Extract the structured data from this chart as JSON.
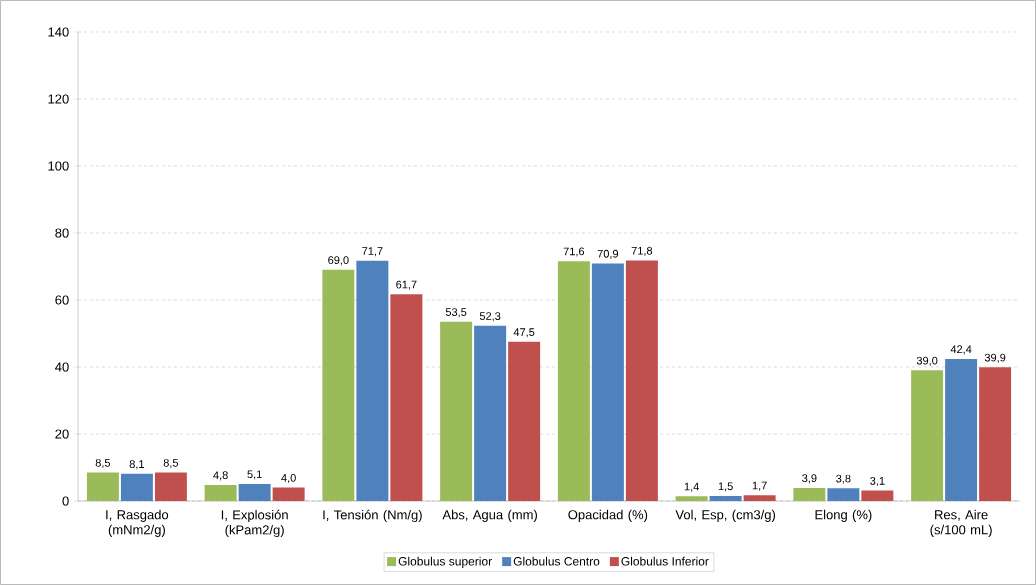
{
  "chart_data": {
    "type": "bar",
    "categories": [
      "I, Rasgado (mNm2/g)",
      "I, Explosión (kPam2/g)",
      "I, Tensión (Nm/g)",
      "Abs, Agua (mm)",
      "Opacidad (%)",
      "Vol, Esp, (cm3/g)",
      "Elong (%)",
      "Res, Aire (s/100 mL)"
    ],
    "series": [
      {
        "name": "Globulus superior",
        "color": "#9bbb59",
        "values": [
          8.5,
          4.8,
          69.0,
          53.5,
          71.6,
          1.4,
          3.9,
          39.0
        ],
        "value_labels": [
          "8,5",
          "4,8",
          "69,0",
          "53,5",
          "71,6",
          "1,4",
          "3,9",
          "39,0"
        ]
      },
      {
        "name": "Globulus Centro",
        "color": "#4f81bd",
        "values": [
          8.1,
          5.1,
          71.7,
          52.3,
          70.9,
          1.5,
          3.8,
          42.4
        ],
        "value_labels": [
          "8,1",
          "5,1",
          "71,7",
          "52,3",
          "70,9",
          "1,5",
          "3,8",
          "42,4"
        ]
      },
      {
        "name": "Globulus Inferior",
        "color": "#c0504d",
        "values": [
          8.5,
          4.0,
          61.7,
          47.5,
          71.8,
          1.7,
          3.1,
          39.9
        ],
        "value_labels": [
          "8,5",
          "4,0",
          "61,7",
          "47,5",
          "71,8",
          "1,7",
          "3,1",
          "39,9"
        ]
      }
    ],
    "ylim": [
      0,
      140
    ],
    "yticks": [
      0,
      20,
      40,
      60,
      80,
      100,
      120,
      140
    ],
    "grid": "y",
    "legend": "bottom"
  }
}
